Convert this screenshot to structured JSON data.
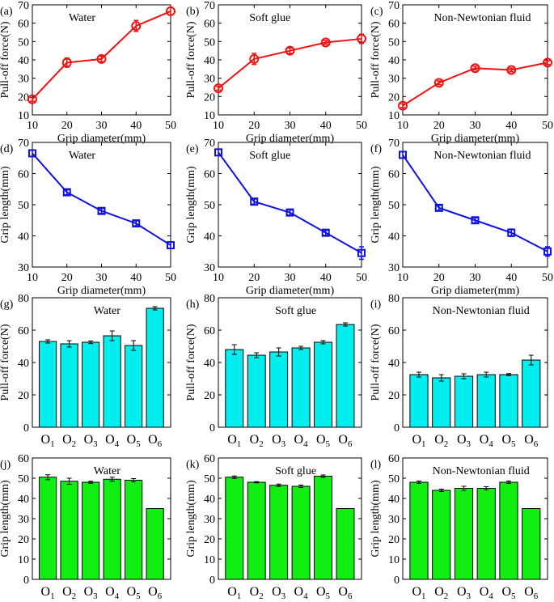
{
  "chart_data": [
    {
      "panel": "(a)",
      "type": "line",
      "title": "Water",
      "color": "#ee1111",
      "marker": "circle",
      "xlabel": "Grip diameter(mm)",
      "ylabel": "Pull-off force(N)",
      "x": [
        10,
        20,
        30,
        40,
        50
      ],
      "y": [
        18.5,
        38.5,
        40.5,
        58.5,
        66.5
      ],
      "err": [
        1,
        2.5,
        1.5,
        3,
        2
      ],
      "xlim": [
        10,
        50
      ],
      "ylim": [
        10,
        70
      ],
      "xticks": [
        "10",
        "20",
        "30",
        "40",
        "50"
      ],
      "yticks": [
        "10",
        "20",
        "30",
        "40",
        "50",
        "60",
        "70"
      ]
    },
    {
      "panel": "(b)",
      "type": "line",
      "title": "Soft glue",
      "color": "#ee1111",
      "marker": "circle",
      "xlabel": "Grip diameter(mm)",
      "ylabel": "Pull-off force(N)",
      "x": [
        10,
        20,
        30,
        40,
        50
      ],
      "y": [
        24.5,
        40.5,
        45,
        49.5,
        51.5
      ],
      "err": [
        1,
        3,
        1.5,
        1,
        2.5
      ],
      "xlim": [
        10,
        50
      ],
      "ylim": [
        10,
        70
      ],
      "xticks": [
        "10",
        "20",
        "30",
        "40",
        "50"
      ],
      "yticks": [
        "10",
        "20",
        "30",
        "40",
        "50",
        "60",
        "70"
      ]
    },
    {
      "panel": "(c)",
      "type": "line",
      "title": "Non-Newtonian fluid",
      "color": "#ee1111",
      "marker": "circle",
      "xlabel": "Grip diameter(mm)",
      "ylabel": "Pull-off force(N)",
      "x": [
        10,
        20,
        30,
        40,
        50
      ],
      "y": [
        15,
        27.5,
        35.5,
        34.5,
        38.5
      ],
      "err": [
        1,
        1,
        1,
        1,
        1
      ],
      "xlim": [
        10,
        50
      ],
      "ylim": [
        10,
        70
      ],
      "xticks": [
        "10",
        "20",
        "30",
        "40",
        "50"
      ],
      "yticks": [
        "10",
        "20",
        "30",
        "40",
        "50",
        "60",
        "70"
      ]
    },
    {
      "panel": "(d)",
      "type": "line",
      "title": "Water",
      "color": "#1111dd",
      "marker": "square",
      "xlabel": "Grip diameter(mm)",
      "ylabel": "Grip length(mm)",
      "x": [
        10,
        20,
        30,
        40,
        50
      ],
      "y": [
        66.5,
        54,
        48,
        44,
        37
      ],
      "err": [
        1,
        0.8,
        0.8,
        0.8,
        1
      ],
      "xlim": [
        10,
        50
      ],
      "ylim": [
        30,
        70
      ],
      "xticks": [
        "10",
        "20",
        "30",
        "40",
        "50"
      ],
      "yticks": [
        "30",
        "40",
        "50",
        "60",
        "70"
      ]
    },
    {
      "panel": "(e)",
      "type": "line",
      "title": "Soft glue",
      "color": "#1111dd",
      "marker": "square",
      "xlabel": "Grip diameter(mm)",
      "ylabel": "Grip length(mm)",
      "x": [
        10,
        20,
        30,
        40,
        50
      ],
      "y": [
        66.8,
        51,
        47.5,
        41,
        34.5
      ],
      "err": [
        1,
        0.8,
        0.8,
        0.8,
        2
      ],
      "xlim": [
        10,
        50
      ],
      "ylim": [
        30,
        70
      ],
      "xticks": [
        "10",
        "20",
        "30",
        "40",
        "50"
      ],
      "yticks": [
        "30",
        "40",
        "50",
        "60",
        "70"
      ]
    },
    {
      "panel": "(f)",
      "type": "line",
      "title": "Non-Newtonian fluid",
      "color": "#1111dd",
      "marker": "square",
      "xlabel": "Grip diameter(mm)",
      "ylabel": "Grip length(mm)",
      "x": [
        10,
        20,
        30,
        40,
        50
      ],
      "y": [
        66,
        49,
        45,
        41,
        35
      ],
      "err": [
        1,
        0.8,
        0.8,
        1.2,
        1.5
      ],
      "xlim": [
        10,
        50
      ],
      "ylim": [
        30,
        70
      ],
      "xticks": [
        "10",
        "20",
        "30",
        "40",
        "50"
      ],
      "yticks": [
        "30",
        "40",
        "50",
        "60",
        "70"
      ]
    },
    {
      "panel": "(g)",
      "type": "bar",
      "title": "Water",
      "color": "#00eeee",
      "ylabel": "Pull-off force(N)",
      "categories": [
        "1",
        "2",
        "3",
        "4",
        "5",
        "6"
      ],
      "category_prefix": "O",
      "values": [
        53,
        51.5,
        52.5,
        56.5,
        50.5,
        73.5
      ],
      "err": [
        1,
        2,
        0.8,
        3,
        3,
        1
      ],
      "ylim": [
        0,
        80
      ],
      "yticks": [
        "0",
        "20",
        "40",
        "60",
        "80"
      ]
    },
    {
      "panel": "(h)",
      "type": "bar",
      "title": "Soft glue",
      "color": "#00eeee",
      "ylabel": "Pull-off force(N)",
      "categories": [
        "1",
        "2",
        "3",
        "4",
        "5",
        "6"
      ],
      "category_prefix": "O",
      "values": [
        48,
        44.5,
        46.5,
        49,
        52.5,
        63.5
      ],
      "err": [
        3,
        1.5,
        2.5,
        1,
        1,
        1
      ],
      "ylim": [
        0,
        80
      ],
      "yticks": [
        "0",
        "20",
        "40",
        "60",
        "80"
      ]
    },
    {
      "panel": "(i)",
      "type": "bar",
      "title": "Non-Newtonian fluid",
      "color": "#00eeee",
      "ylabel": "Pull-off force(N)",
      "categories": [
        "1",
        "2",
        "3",
        "4",
        "5",
        "6"
      ],
      "category_prefix": "O",
      "values": [
        32.5,
        30.5,
        31.5,
        32.5,
        32.5,
        41.5
      ],
      "err": [
        1.5,
        2,
        1.5,
        1.5,
        0.6,
        3
      ],
      "ylim": [
        0,
        80
      ],
      "yticks": [
        "0",
        "20",
        "40",
        "60",
        "80"
      ]
    },
    {
      "panel": "(j)",
      "type": "bar",
      "title": "Water",
      "color": "#11ee11",
      "ylabel": "Grip length(mm)",
      "categories": [
        "1",
        "2",
        "3",
        "4",
        "5",
        "6"
      ],
      "category_prefix": "O",
      "values": [
        50.5,
        48.5,
        48,
        49.5,
        49,
        35
      ],
      "err": [
        1.2,
        1.5,
        0.5,
        1,
        0.8,
        0
      ],
      "ylim": [
        0,
        60
      ],
      "yticks": [
        "0",
        "10",
        "20",
        "30",
        "40",
        "50",
        "60"
      ]
    },
    {
      "panel": "(k)",
      "type": "bar",
      "title": "Soft glue",
      "color": "#11ee11",
      "ylabel": "Grip length(mm)",
      "categories": [
        "1",
        "2",
        "3",
        "4",
        "5",
        "6"
      ],
      "category_prefix": "O",
      "values": [
        50.5,
        48,
        46.5,
        46,
        51,
        35
      ],
      "err": [
        0.6,
        0.3,
        0.6,
        0.6,
        0.6,
        0
      ],
      "ylim": [
        0,
        60
      ],
      "yticks": [
        "0",
        "10",
        "20",
        "30",
        "40",
        "50",
        "60"
      ]
    },
    {
      "panel": "(l)",
      "type": "bar",
      "title": "Non-Newtonian fluid",
      "color": "#11ee11",
      "ylabel": "Grip length(mm)",
      "categories": [
        "1",
        "2",
        "3",
        "4",
        "5",
        "6"
      ],
      "category_prefix": "O",
      "values": [
        48,
        44,
        45,
        45,
        48,
        35
      ],
      "err": [
        0.6,
        0.6,
        1,
        0.8,
        0.6,
        0
      ],
      "ylim": [
        0,
        60
      ],
      "yticks": [
        "0",
        "10",
        "20",
        "30",
        "40",
        "50",
        "60"
      ]
    }
  ]
}
